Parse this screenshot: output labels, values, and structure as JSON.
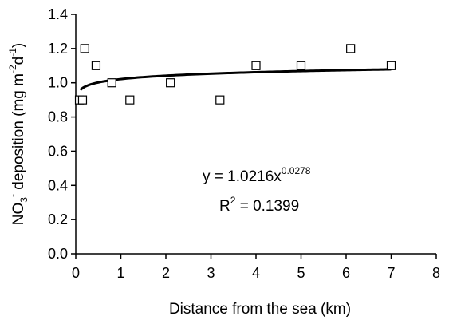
{
  "chart_data": {
    "type": "scatter",
    "xlabel": "Distance from the sea (km)",
    "ylabel_main": "NO",
    "ylabel_sub": "3",
    "ylabel_sup": "-",
    "ylabel_mid": " deposition (mg m",
    "ylabel_sup2": "-2",
    "ylabel_d": "d",
    "ylabel_sup3": "-1",
    "ylabel_end": ")",
    "xlim": [
      0,
      8
    ],
    "ylim": [
      0.0,
      1.4
    ],
    "xticks": [
      0,
      1,
      2,
      3,
      4,
      5,
      6,
      7,
      8
    ],
    "yticks": [
      "0.0",
      "0.2",
      "0.4",
      "0.6",
      "0.8",
      "1.0",
      "1.2",
      "1.4"
    ],
    "points": [
      {
        "x": 0.08,
        "y": 0.9
      },
      {
        "x": 0.15,
        "y": 0.9
      },
      {
        "x": 0.2,
        "y": 1.2
      },
      {
        "x": 0.45,
        "y": 1.1
      },
      {
        "x": 0.8,
        "y": 1.0
      },
      {
        "x": 1.2,
        "y": 0.9
      },
      {
        "x": 2.1,
        "y": 1.0
      },
      {
        "x": 3.2,
        "y": 0.9
      },
      {
        "x": 4.0,
        "y": 1.1
      },
      {
        "x": 5.0,
        "y": 1.1
      },
      {
        "x": 6.1,
        "y": 1.2
      },
      {
        "x": 7.0,
        "y": 1.1
      }
    ],
    "fit": {
      "a": 1.0216,
      "b": 0.0278,
      "x_from": 0.1,
      "x_to": 7.0
    },
    "equation_base": "y = 1.0216x",
    "equation_exp": "0.0278",
    "r2_base": "R",
    "r2_sup": "2",
    "r2_value": " = 0.1399",
    "grid": false,
    "marker": "open-square",
    "line_color": "#000000"
  }
}
